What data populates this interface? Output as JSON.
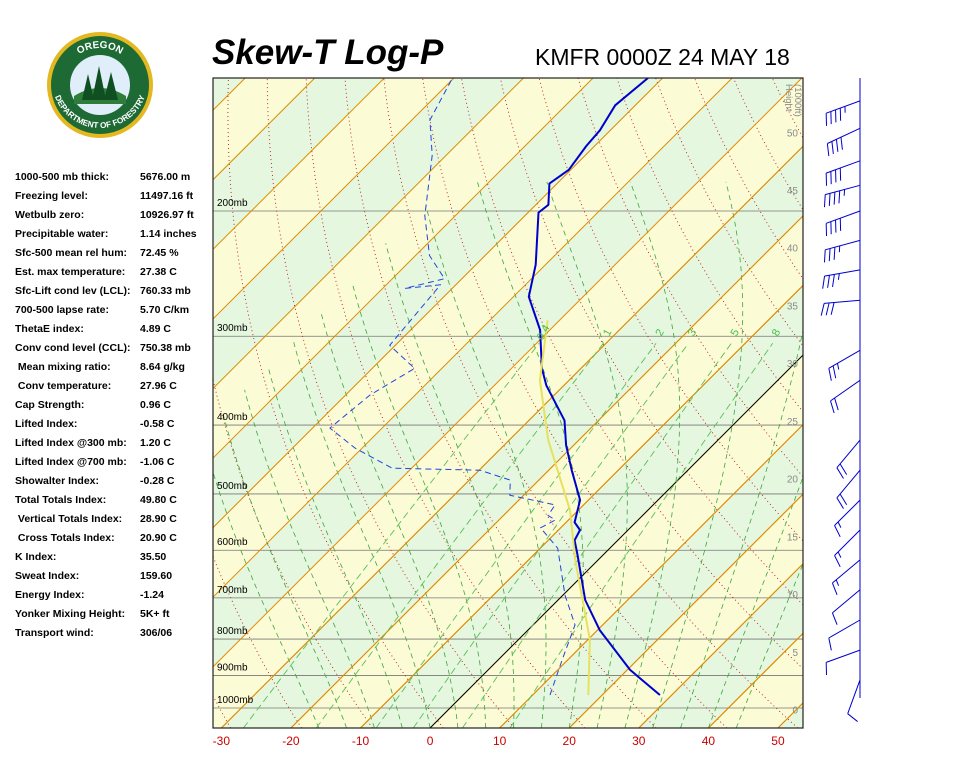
{
  "chart_data": {
    "type": "skewt",
    "title": "Skew-T Log-P",
    "subtitle": "KMFR 0000Z 24 MAY 18",
    "xlim": [
      -31.2,
      53.6
    ],
    "xticks": [
      -30,
      -20,
      -10,
      0,
      10,
      20,
      30,
      40,
      50
    ],
    "ylim": [
      1067,
      130
    ],
    "log_y": true,
    "pressure_levels": [
      {
        "value": 200,
        "label": "200mb"
      },
      {
        "value": 300,
        "label": "300mb"
      },
      {
        "value": 400,
        "label": "400mb"
      },
      {
        "value": 500,
        "label": "500mb"
      },
      {
        "value": 600,
        "label": "600mb"
      },
      {
        "value": 700,
        "label": "700mb"
      },
      {
        "value": 800,
        "label": "800mb"
      },
      {
        "value": 900,
        "label": "900mb"
      },
      {
        "value": 1000,
        "label": "1000mb"
      }
    ],
    "y2label": [
      "Height",
      "(1000ft)"
    ],
    "y2lim": [
      -1.6,
      54.7
    ],
    "y2ticks": [
      0,
      5,
      10,
      15,
      20,
      25,
      30,
      35,
      40,
      45,
      50
    ],
    "mixing_ratio_lines": [
      0.4,
      1,
      2,
      3,
      5,
      8
    ],
    "band_colors": [
      "#fbfbd6",
      "#e5f7de"
    ],
    "isotherm_color": "#e08a00",
    "series": [
      {
        "color": "#0000cc",
        "style": "solid",
        "pressure": [
          959,
          884,
          777,
          705,
          609,
          581,
          562,
          548,
          510,
          463,
          427,
          394,
          352,
          333,
          294,
          264,
          238,
          201,
          196,
          183,
          175,
          162,
          154,
          142,
          130
        ],
        "temperature": [
          28.3,
          20.4,
          10.3,
          3.9,
          -3.7,
          -6.2,
          -6.9,
          -8.8,
          -11.2,
          -16.7,
          -21.1,
          -24.9,
          -32.5,
          -35.6,
          -41.4,
          -47.8,
          -51.4,
          -58.5,
          -58.2,
          -61.1,
          -60.3,
          -61.2,
          -61.5,
          -62.9,
          -62.1
        ]
      },
      {
        "color": "#2244dd",
        "style": "dashed",
        "pressure": [
          959,
          856,
          764,
          694,
          596,
          558,
          544,
          536,
          518,
          502,
          478,
          463,
          460,
          431,
          404,
          363,
          333,
          309,
          254,
          257,
          249,
          231,
          203,
          167,
          149,
          130
        ],
        "temperature": [
          12.5,
          9.2,
          6.0,
          0.3,
          -7.5,
          -12.9,
          -11.9,
          -13.6,
          -14.1,
          -22.0,
          -24.1,
          -29.9,
          -42.8,
          -51.0,
          -57.5,
          -56.5,
          -53.9,
          -60.8,
          -62.2,
          -66.8,
          -62.5,
          -68.0,
          -74.4,
          -82.0,
          -87.4,
          -90.2
        ]
      },
      {
        "color": "#e8e060",
        "style": "solid",
        "pressure": [
          959,
          802,
          619,
          527,
          420,
          346,
          285
        ],
        "temperature": [
          18.0,
          10.3,
          -3.3,
          -11.2,
          -24.4,
          -34.2,
          -41.7
        ]
      }
    ],
    "winds": {
      "color": "#0000cc",
      "pressure": [
        140,
        153,
        170,
        184,
        200,
        220,
        242,
        267,
        314,
        346,
        420,
        463,
        510,
        562,
        619,
        682,
        752,
        829,
        913
      ],
      "direction": [
        250,
        245,
        250,
        255,
        250,
        255,
        260,
        265,
        240,
        235,
        220,
        220,
        225,
        225,
        230,
        230,
        240,
        250,
        200
      ],
      "speed": [
        45,
        40,
        40,
        45,
        40,
        35,
        35,
        30,
        25,
        20,
        20,
        20,
        15,
        15,
        15,
        10,
        10,
        10,
        10
      ]
    }
  },
  "logo": {
    "top": "OREGON",
    "bottom": "DEPARTMENT OF FORESTRY"
  },
  "stats": [
    [
      "1000-500 mb thick:",
      "5676.00 m"
    ],
    [
      "Freezing level:",
      "11497.16 ft"
    ],
    [
      "Wetbulb zero:",
      "10926.97 ft"
    ],
    [
      "Precipitable water:",
      "1.14 inches"
    ],
    [
      "Sfc-500 mean rel hum:",
      "72.45 %"
    ],
    [
      "Est. max temperature:",
      "27.38 C"
    ],
    [
      "Sfc-Lift cond lev (LCL):",
      "760.33 mb"
    ],
    [
      "700-500 lapse rate:",
      "5.70 C/km"
    ],
    [
      "ThetaE index:",
      "4.89 C"
    ],
    [
      "Conv cond level (CCL):",
      "750.38 mb"
    ],
    [
      " Mean mixing ratio:",
      "8.64 g/kg"
    ],
    [
      " Conv temperature:",
      "27.96 C"
    ],
    [
      "Cap Strength:",
      "0.96 C"
    ],
    [
      "Lifted Index:",
      "-0.58 C"
    ],
    [
      "Lifted Index @300 mb:",
      "1.20 C"
    ],
    [
      "Lifted Index @700 mb:",
      "-1.06 C"
    ],
    [
      "Showalter Index:",
      "-0.28 C"
    ],
    [
      "Total Totals Index:",
      "49.80 C"
    ],
    [
      " Vertical Totals Index:",
      "28.90 C"
    ],
    [
      " Cross Totals Index:",
      "20.90 C"
    ],
    [
      "K Index:",
      "35.50"
    ],
    [
      "Sweat Index:",
      "159.60"
    ],
    [
      "Energy Index:",
      "-1.24"
    ],
    [
      "Yonker Mixing Height:",
      "5K+ ft"
    ],
    [
      "Transport wind:",
      "306/06"
    ]
  ]
}
